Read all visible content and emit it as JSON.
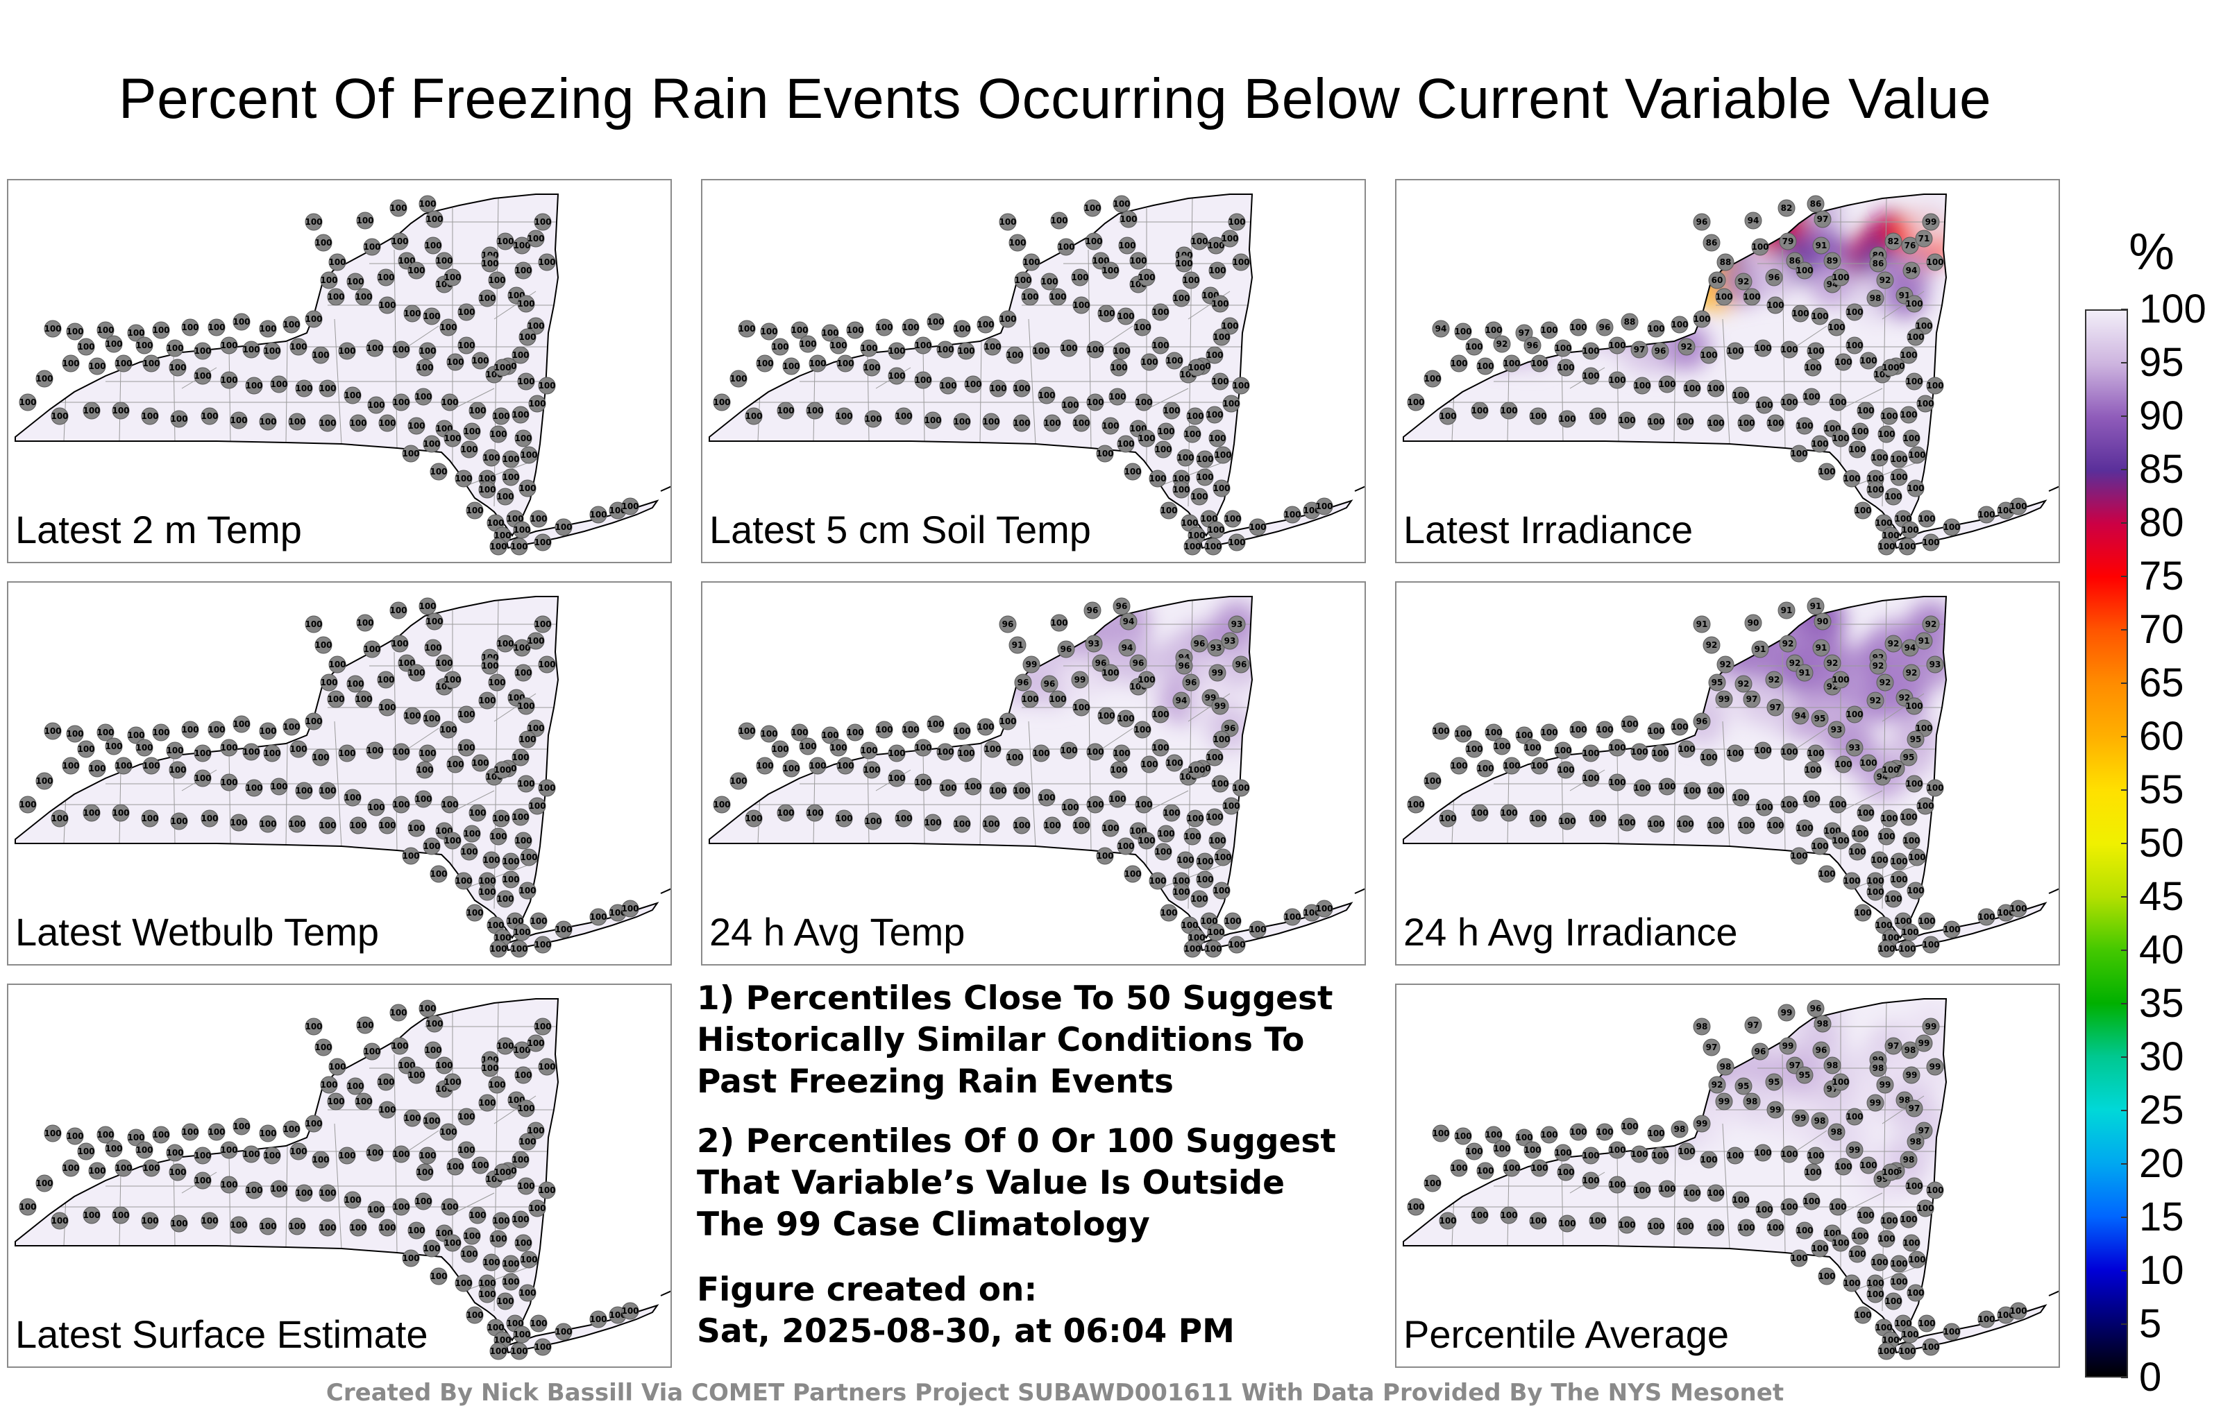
{
  "title": "Percent Of Freezing Rain Events Occurring Below Current Variable Value",
  "panels": [
    {
      "label": "Latest 2 m Temp",
      "values": [
        100,
        100,
        100,
        100,
        100,
        100,
        100,
        100,
        100,
        100,
        100,
        100,
        100,
        100,
        100,
        100,
        100,
        100,
        100,
        100,
        100,
        100,
        100,
        100,
        100,
        100,
        100,
        100,
        100,
        100,
        100,
        100,
        100,
        100,
        100,
        100,
        100,
        100,
        100,
        100,
        100,
        100,
        100,
        100,
        100,
        100,
        100,
        100,
        100,
        100,
        100,
        100,
        100,
        100,
        100,
        100,
        100,
        100,
        100,
        100,
        100,
        100,
        100,
        100,
        100,
        100,
        100,
        100,
        100,
        100,
        100,
        100,
        100,
        100,
        100,
        100,
        100,
        100,
        100,
        100,
        100,
        100,
        100,
        100,
        100,
        100,
        100,
        100,
        100,
        100,
        100,
        100,
        100,
        100,
        100,
        100,
        100,
        100,
        100,
        100,
        100,
        100,
        100,
        100,
        100,
        100,
        100,
        100,
        100,
        100,
        100,
        100,
        100,
        100,
        100,
        100,
        100,
        100,
        100,
        100,
        100,
        100,
        100,
        100,
        100,
        100,
        100,
        100,
        100,
        100,
        100,
        100,
        100,
        100,
        100,
        100,
        100,
        100,
        100,
        100
      ]
    },
    {
      "label": "Latest 5 cm Soil Temp",
      "values": [
        100,
        100,
        100,
        100,
        100,
        100,
        100,
        100,
        100,
        100,
        100,
        100,
        100,
        100,
        100,
        100,
        100,
        100,
        100,
        100,
        100,
        100,
        100,
        100,
        100,
        100,
        100,
        100,
        100,
        100,
        100,
        100,
        100,
        100,
        100,
        100,
        100,
        100,
        100,
        100,
        100,
        100,
        100,
        100,
        100,
        100,
        100,
        100,
        100,
        100,
        100,
        100,
        100,
        100,
        100,
        100,
        100,
        100,
        100,
        100,
        100,
        100,
        100,
        100,
        100,
        100,
        100,
        100,
        100,
        100,
        100,
        100,
        100,
        100,
        100,
        100,
        100,
        100,
        100,
        100,
        100,
        100,
        100,
        100,
        100,
        100,
        100,
        100,
        100,
        100,
        100,
        100,
        100,
        100,
        100,
        100,
        100,
        100,
        100,
        100,
        100,
        100,
        100,
        100,
        100,
        100,
        100,
        100,
        100,
        100,
        100,
        100,
        100,
        100,
        100,
        100,
        100,
        100,
        100,
        100,
        100,
        100,
        100,
        100,
        100,
        100,
        100,
        100,
        100,
        100,
        100,
        100,
        100,
        100,
        100,
        100,
        100,
        100,
        100,
        100
      ]
    },
    {
      "label": "Latest Irradiance",
      "values": [
        96,
        94,
        82,
        86,
        97,
        86,
        88,
        100,
        79,
        91,
        86,
        89,
        60,
        92,
        96,
        100,
        94,
        80,
        82,
        76,
        71,
        99,
        86,
        94,
        92,
        98,
        91,
        100,
        100,
        100,
        100,
        100,
        100,
        100,
        100,
        100,
        100,
        100,
        100,
        100,
        100,
        100,
        100,
        100,
        88,
        96,
        100,
        100,
        97,
        100,
        100,
        94,
        100,
        92,
        96,
        100,
        100,
        100,
        97,
        96,
        92,
        100,
        100,
        100,
        100,
        100,
        100,
        100,
        100,
        100,
        100,
        100,
        100,
        100,
        100,
        100,
        100,
        100,
        100,
        100,
        100,
        100,
        100,
        100,
        100,
        100,
        100,
        100,
        100,
        100,
        100,
        100,
        100,
        100,
        100,
        100,
        100,
        100,
        100,
        100,
        100,
        100,
        100,
        100,
        100,
        100,
        100,
        100,
        100,
        100,
        100,
        100,
        100,
        100,
        100,
        100,
        100,
        100,
        100,
        100,
        100,
        100,
        100,
        100,
        100,
        100,
        100,
        100,
        100,
        100,
        100,
        100,
        100,
        100,
        100,
        100,
        100,
        100,
        100,
        100
      ]
    },
    {
      "label": "Latest Wetbulb Temp",
      "values": [
        100,
        100,
        100,
        100,
        100,
        100,
        100,
        100,
        100,
        100,
        100,
        100,
        100,
        100,
        100,
        100,
        100,
        100,
        100,
        100,
        100,
        100,
        100,
        100,
        100,
        100,
        100,
        100,
        100,
        100,
        100,
        100,
        100,
        100,
        100,
        100,
        100,
        100,
        100,
        100,
        100,
        100,
        100,
        100,
        100,
        100,
        100,
        100,
        100,
        100,
        100,
        100,
        100,
        100,
        100,
        100,
        100,
        100,
        100,
        100,
        100,
        100,
        100,
        100,
        100,
        100,
        100,
        100,
        100,
        100,
        100,
        100,
        100,
        100,
        100,
        100,
        100,
        100,
        100,
        100,
        100,
        100,
        100,
        100,
        100,
        100,
        100,
        100,
        100,
        100,
        100,
        100,
        100,
        100,
        100,
        100,
        100,
        100,
        100,
        100,
        100,
        100,
        100,
        100,
        100,
        100,
        100,
        100,
        100,
        100,
        100,
        100,
        100,
        100,
        100,
        100,
        100,
        100,
        100,
        100,
        100,
        100,
        100,
        100,
        100,
        100,
        100,
        100,
        100,
        100,
        100,
        100,
        100,
        100,
        100,
        100,
        100,
        100,
        100,
        100
      ]
    },
    {
      "label": "24 h Avg Temp",
      "values": [
        96,
        100,
        96,
        96,
        94,
        91,
        99,
        96,
        93,
        94,
        96,
        96,
        96,
        96,
        99,
        100,
        100,
        94,
        96,
        93,
        93,
        93,
        96,
        99,
        96,
        94,
        99,
        99,
        96,
        96,
        100,
        100,
        100,
        100,
        100,
        100,
        100,
        100,
        100,
        100,
        100,
        100,
        100,
        100,
        100,
        100,
        100,
        100,
        100,
        100,
        100,
        100,
        100,
        100,
        100,
        100,
        100,
        100,
        100,
        100,
        100,
        100,
        100,
        100,
        100,
        100,
        100,
        100,
        100,
        100,
        100,
        100,
        100,
        100,
        100,
        100,
        100,
        100,
        100,
        100,
        100,
        100,
        100,
        100,
        100,
        100,
        100,
        100,
        100,
        100,
        100,
        100,
        100,
        100,
        100,
        100,
        100,
        100,
        100,
        100,
        100,
        100,
        100,
        100,
        100,
        100,
        100,
        100,
        100,
        100,
        100,
        100,
        100,
        100,
        100,
        100,
        100,
        100,
        100,
        100,
        100,
        100,
        100,
        100,
        100,
        100,
        100,
        100,
        100,
        100,
        100,
        100,
        100,
        100,
        100,
        100,
        100,
        100,
        100,
        100
      ]
    },
    {
      "label": "24 h Avg Irradiance",
      "values": [
        91,
        90,
        91,
        91,
        90,
        92,
        92,
        91,
        92,
        91,
        92,
        92,
        95,
        92,
        92,
        91,
        92,
        92,
        92,
        94,
        91,
        92,
        92,
        92,
        92,
        92,
        92,
        100,
        93,
        100,
        95,
        95,
        97,
        94,
        93,
        93,
        95,
        94,
        97,
        97,
        99,
        96,
        100,
        100,
        100,
        100,
        100,
        100,
        100,
        100,
        100,
        100,
        100,
        100,
        100,
        100,
        100,
        100,
        100,
        100,
        100,
        100,
        100,
        100,
        100,
        100,
        100,
        100,
        100,
        100,
        100,
        100,
        100,
        100,
        100,
        100,
        100,
        100,
        100,
        100,
        100,
        100,
        100,
        100,
        100,
        100,
        100,
        100,
        100,
        100,
        100,
        100,
        100,
        100,
        100,
        100,
        100,
        100,
        100,
        100,
        100,
        100,
        100,
        100,
        100,
        100,
        100,
        100,
        100,
        100,
        100,
        100,
        100,
        100,
        100,
        100,
        100,
        100,
        100,
        100,
        100,
        100,
        100,
        100,
        100,
        100,
        100,
        100,
        100,
        100,
        100,
        100,
        100,
        100,
        100,
        100,
        100,
        100,
        100,
        100
      ]
    },
    {
      "label": "Latest Surface Estimate",
      "values": [
        100,
        100,
        100,
        100,
        100,
        100,
        100,
        100,
        100,
        100,
        100,
        100,
        100,
        100,
        100,
        100,
        100,
        100,
        100,
        100,
        100,
        100,
        100,
        100,
        100,
        100,
        100,
        100,
        100,
        100,
        100,
        100,
        100,
        100,
        100,
        100,
        100,
        100,
        100,
        100,
        100,
        100,
        100,
        100,
        100,
        100,
        100,
        100,
        100,
        100,
        100,
        100,
        100,
        100,
        100,
        100,
        100,
        100,
        100,
        100,
        100,
        100,
        100,
        100,
        100,
        100,
        100,
        100,
        100,
        100,
        100,
        100,
        100,
        100,
        100,
        100,
        100,
        100,
        100,
        100,
        100,
        100,
        100,
        100,
        100,
        100,
        100,
        100,
        100,
        100,
        100,
        100,
        100,
        100,
        100,
        100,
        100,
        100,
        100,
        100,
        100,
        100,
        100,
        100,
        100,
        100,
        100,
        100,
        100,
        100,
        100,
        100,
        100,
        100,
        100,
        100,
        100,
        100,
        100,
        100,
        100,
        100,
        100,
        100,
        100,
        100,
        100,
        100,
        100,
        100,
        100,
        100,
        100,
        100,
        100,
        100,
        100,
        100,
        100,
        100
      ]
    },
    {
      "label": "Percentile Average",
      "values": [
        98,
        97,
        99,
        96,
        98,
        97,
        98,
        96,
        99,
        96,
        97,
        98,
        92,
        95,
        95,
        95,
        97,
        99,
        97,
        98,
        99,
        99,
        98,
        99,
        99,
        99,
        98,
        97,
        99,
        97,
        98,
        98,
        96,
        99,
        99,
        98,
        98,
        99,
        99,
        98,
        99,
        99,
        98,
        100,
        100,
        100,
        100,
        100,
        100,
        100,
        100,
        100,
        100,
        100,
        100,
        100,
        100,
        100,
        100,
        100,
        100,
        100,
        100,
        100,
        100,
        100,
        100,
        100,
        100,
        100,
        100,
        100,
        100,
        100,
        100,
        100,
        100,
        100,
        100,
        100,
        100,
        100,
        100,
        100,
        100,
        100,
        100,
        100,
        100,
        100,
        100,
        100,
        100,
        100,
        100,
        100,
        100,
        100,
        100,
        100,
        100,
        100,
        100,
        100,
        100,
        100,
        100,
        100,
        100,
        100,
        100,
        100,
        100,
        100,
        100,
        100,
        100,
        100,
        100,
        100,
        100,
        100,
        100,
        100,
        100,
        100,
        100,
        100,
        100,
        100,
        100,
        100,
        100,
        100,
        100,
        100,
        100,
        100,
        100,
        100
      ]
    }
  ],
  "notes": {
    "note1": "1) Percentiles Close To 50 Suggest Historically Similar Conditions To Past Freezing Rain Events",
    "note2": "2) Percentiles Of 0 Or 100 Suggest That Variable’s Value Is Outside The 99 Case Climatology",
    "created_label": "Figure created on:",
    "created_value": "Sat, 2025-08-30, at 06:04 PM"
  },
  "credit": "Created By Nick Bassill Via COMET Partners Project SUBAWD001611 With Data Provided By The NYS Mesonet",
  "colorbar": {
    "unit": "%",
    "ticks": [
      "100",
      "95",
      "90",
      "85",
      "80",
      "75",
      "70",
      "65",
      "60",
      "55",
      "50",
      "45",
      "40",
      "35",
      "30",
      "25",
      "20",
      "15",
      "10",
      "5",
      "0"
    ],
    "colors": {
      "100": "#f2eef8",
      "95": "#cdb4df",
      "90": "#8f5cba",
      "85": "#5a2f9a",
      "80": "#cc0044",
      "75": "#ff0000",
      "70": "#ff5500",
      "65": "#ff8c00",
      "60": "#ffb000",
      "55": "#ffe000",
      "50": "#f0f000",
      "45": "#b4e000",
      "40": "#44c800",
      "35": "#00b000",
      "30": "#00c890",
      "25": "#00d8d8",
      "20": "#00a8f0",
      "15": "#0066ff",
      "10": "#0000d8",
      "5": "#00006e",
      "0": "#000000"
    }
  }
}
